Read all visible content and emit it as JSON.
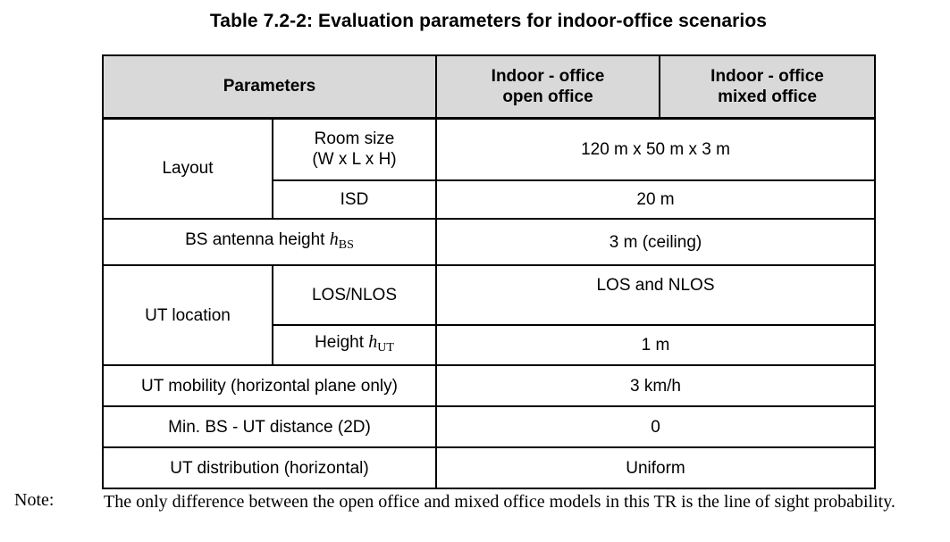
{
  "title": "Table 7.2-2: Evaluation parameters for indoor-office scenarios",
  "table": {
    "header": {
      "parameters": "Parameters",
      "open_office_line1": "Indoor - office",
      "open_office_line2": "open office",
      "mixed_office_line1": "Indoor - office",
      "mixed_office_line2": "mixed office"
    },
    "rows": {
      "layout": {
        "label": "Layout",
        "room_size_line1": "Room size",
        "room_size_line2": "(W x L x H)",
        "room_size_value": "120 m x 50 m x 3 m",
        "isd_label": "ISD",
        "isd_value": "20 m"
      },
      "bs_antenna": {
        "label": "BS antenna height ",
        "symbol": "h",
        "subscript": "BS",
        "value": "3 m (ceiling)"
      },
      "ut_location": {
        "label": "UT location",
        "los_label": "LOS/NLOS",
        "los_value": "LOS and NLOS",
        "height_label": "Height ",
        "height_symbol": "h",
        "height_subscript": "UT",
        "height_value": "1 m"
      },
      "ut_mobility": {
        "label": "UT mobility (horizontal plane only)",
        "value": "3 km/h"
      },
      "min_distance": {
        "label": "Min. BS - UT distance (2D)",
        "value": "0"
      },
      "ut_distribution": {
        "label": "UT distribution (horizontal)",
        "value": "Uniform"
      }
    }
  },
  "note": {
    "label": "Note:",
    "text": "The only difference between the open office and mixed office models in this TR is the line of sight probability."
  }
}
